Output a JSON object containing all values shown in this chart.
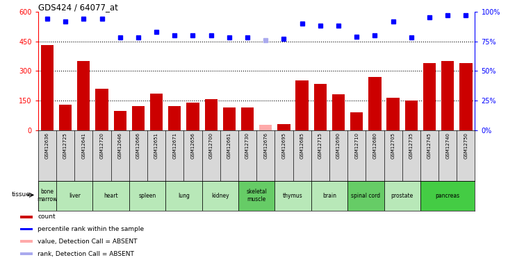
{
  "title": "GDS424 / 64077_at",
  "samples": [
    "GSM12636",
    "GSM12725",
    "GSM12641",
    "GSM12720",
    "GSM12646",
    "GSM12666",
    "GSM12651",
    "GSM12671",
    "GSM12656",
    "GSM12700",
    "GSM12661",
    "GSM12730",
    "GSM12676",
    "GSM12695",
    "GSM12685",
    "GSM12715",
    "GSM12690",
    "GSM12710",
    "GSM12680",
    "GSM12705",
    "GSM12735",
    "GSM12745",
    "GSM12740",
    "GSM12750"
  ],
  "bar_values": [
    430,
    130,
    350,
    210,
    95,
    120,
    185,
    120,
    140,
    155,
    115,
    115,
    28,
    30,
    250,
    235,
    180,
    90,
    270,
    165,
    150,
    340,
    350,
    340
  ],
  "bar_colors": [
    "#cc0000",
    "#cc0000",
    "#cc0000",
    "#cc0000",
    "#cc0000",
    "#cc0000",
    "#cc0000",
    "#cc0000",
    "#cc0000",
    "#cc0000",
    "#cc0000",
    "#cc0000",
    "#ffaaaa",
    "#cc0000",
    "#cc0000",
    "#cc0000",
    "#cc0000",
    "#cc0000",
    "#cc0000",
    "#cc0000",
    "#cc0000",
    "#cc0000",
    "#cc0000",
    "#cc0000"
  ],
  "percentile_values": [
    94,
    92,
    94,
    94,
    78,
    78,
    83,
    80,
    80,
    80,
    78,
    78,
    76,
    77,
    90,
    88,
    88,
    79,
    80,
    92,
    78,
    95,
    97,
    97
  ],
  "percentile_colors": [
    "blue",
    "blue",
    "blue",
    "blue",
    "blue",
    "blue",
    "blue",
    "blue",
    "blue",
    "blue",
    "blue",
    "blue",
    "#aaaaee",
    "blue",
    "blue",
    "blue",
    "blue",
    "blue",
    "blue",
    "blue",
    "blue",
    "blue",
    "blue",
    "blue"
  ],
  "ylim_left": [
    0,
    600
  ],
  "ylim_right": [
    0,
    100
  ],
  "yticks_left": [
    0,
    150,
    300,
    450,
    600
  ],
  "ytick_labels_left": [
    "0",
    "150",
    "300",
    "450",
    "600"
  ],
  "yticks_right": [
    0,
    25,
    50,
    75,
    100
  ],
  "ytick_labels_right": [
    "0%",
    "25%",
    "50%",
    "75%",
    "100%"
  ],
  "hgrid_values": [
    150,
    300,
    450
  ],
  "tissues": [
    {
      "label": "bone\nmarrow",
      "start": 0,
      "end": 1,
      "color": "#b8e8b8"
    },
    {
      "label": "liver",
      "start": 1,
      "end": 3,
      "color": "#b8e8b8"
    },
    {
      "label": "heart",
      "start": 3,
      "end": 5,
      "color": "#b8e8b8"
    },
    {
      "label": "spleen",
      "start": 5,
      "end": 7,
      "color": "#b8e8b8"
    },
    {
      "label": "lung",
      "start": 7,
      "end": 9,
      "color": "#b8e8b8"
    },
    {
      "label": "kidney",
      "start": 9,
      "end": 11,
      "color": "#b8e8b8"
    },
    {
      "label": "skeletal\nmuscle",
      "start": 11,
      "end": 13,
      "color": "#66cc66"
    },
    {
      "label": "thymus",
      "start": 13,
      "end": 15,
      "color": "#b8e8b8"
    },
    {
      "label": "brain",
      "start": 15,
      "end": 17,
      "color": "#b8e8b8"
    },
    {
      "label": "spinal cord",
      "start": 17,
      "end": 19,
      "color": "#66cc66"
    },
    {
      "label": "prostate",
      "start": 19,
      "end": 21,
      "color": "#b8e8b8"
    },
    {
      "label": "pancreas",
      "start": 21,
      "end": 24,
      "color": "#44cc44"
    }
  ],
  "tissue_label": "tissue",
  "legend_items": [
    {
      "color": "#cc0000",
      "label": "count",
      "marker": "square"
    },
    {
      "color": "blue",
      "label": "percentile rank within the sample",
      "marker": "square"
    },
    {
      "color": "#ffaaaa",
      "label": "value, Detection Call = ABSENT",
      "marker": "square"
    },
    {
      "color": "#aaaaee",
      "label": "rank, Detection Call = ABSENT",
      "marker": "square"
    }
  ],
  "sample_label_bg": "#d8d8d8",
  "plot_bg": "white",
  "fig_bg": "white"
}
